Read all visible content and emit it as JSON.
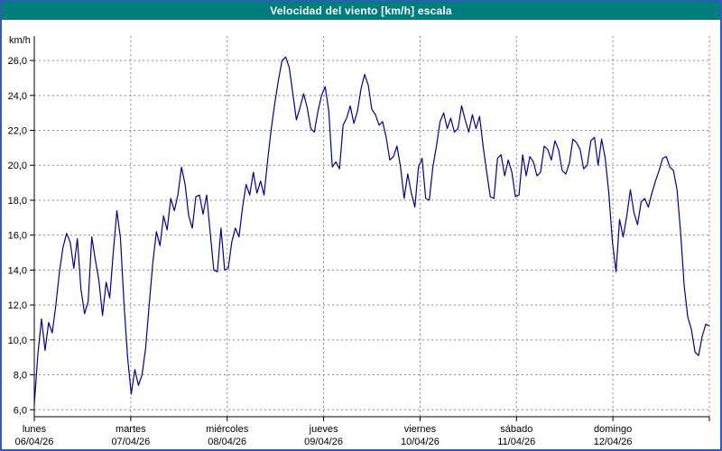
{
  "window": {
    "title": "Velocidad del viento [km/h] escala"
  },
  "colors": {
    "line": "#0000a0",
    "grid": "#8a8a8a",
    "axis": "#000000",
    "text": "#000000",
    "title_bg": "#007d7d",
    "title_fg": "#ffffff",
    "frame": "#2e5cb8",
    "plot_bg": "#ffffff"
  },
  "chart_data": {
    "type": "line",
    "title": "Velocidad del viento [km/h] escala",
    "xlabel": "",
    "ylabel": "km/h",
    "ylim": [
      5.6,
      27.4
    ],
    "yticks": [
      6,
      8,
      10,
      12,
      14,
      16,
      18,
      20,
      22,
      24,
      26
    ],
    "ytick_labels": [
      "6,0",
      "8,0",
      "10,0",
      "12,0",
      "14,0",
      "16,0",
      "18,0",
      "20,0",
      "22,0",
      "24,0",
      "26,0"
    ],
    "grid": true,
    "legend_position": "none",
    "series_name": "Velocidad del viento",
    "days": [
      {
        "name": "lunes",
        "date": "06/04/26",
        "values": [
          6.3,
          9.2,
          11.2,
          9.4,
          11.0,
          10.4,
          12.0,
          13.9,
          15.3,
          16.1,
          15.6,
          14.1,
          15.8,
          12.9,
          11.5,
          12.2,
          15.9,
          14.6,
          13.4,
          11.4,
          13.3,
          12.4,
          15.0,
          17.4,
          15.8,
          12.0,
          9.0
        ]
      },
      {
        "name": "martes",
        "date": "07/04/26",
        "values": [
          6.9,
          8.3,
          7.4,
          8.0,
          9.5,
          12.0,
          14.4,
          16.2,
          15.4,
          17.1,
          16.3,
          18.1,
          17.4,
          18.3,
          19.9,
          18.9,
          17.1,
          16.4,
          18.2,
          18.3,
          17.2,
          18.3,
          16.1,
          14.0,
          13.9,
          16.4,
          14.0
        ]
      },
      {
        "name": "miércoles",
        "date": "08/04/26",
        "values": [
          14.1,
          15.6,
          16.4,
          15.9,
          17.6,
          18.9,
          18.3,
          19.6,
          18.4,
          19.1,
          18.3,
          20.3,
          22.1,
          23.6,
          24.9,
          26.0,
          26.2,
          25.6,
          24.1,
          22.6,
          23.3,
          24.1,
          23.3,
          22.1,
          21.9,
          23.1,
          24.0
        ]
      },
      {
        "name": "jueves",
        "date": "09/04/26",
        "values": [
          24.5,
          23.1,
          19.9,
          20.2,
          19.8,
          22.3,
          22.7,
          23.4,
          22.4,
          23.1,
          24.4,
          25.2,
          24.6,
          23.2,
          22.9,
          22.3,
          22.5,
          21.6,
          20.3,
          20.5,
          21.1,
          19.9,
          18.1,
          19.5,
          18.4,
          17.6,
          19.9
        ]
      },
      {
        "name": "viernes",
        "date": "10/04/26",
        "values": [
          20.4,
          18.1,
          18.0,
          19.9,
          21.1,
          22.5,
          23.0,
          22.1,
          22.7,
          21.9,
          22.1,
          23.4,
          22.6,
          21.9,
          22.9,
          22.1,
          22.8,
          21.1,
          19.6,
          18.2,
          18.1,
          20.4,
          20.6,
          19.4,
          20.3,
          19.6,
          18.2
        ]
      },
      {
        "name": "sábado",
        "date": "11/04/26",
        "values": [
          18.3,
          20.6,
          19.4,
          20.5,
          20.2,
          19.4,
          19.6,
          21.1,
          20.9,
          20.3,
          21.4,
          20.9,
          19.7,
          19.5,
          20.1,
          21.5,
          21.3,
          20.9,
          19.8,
          20.0,
          21.4,
          21.6,
          20.0,
          21.5,
          20.4,
          18.4,
          15.6
        ]
      },
      {
        "name": "domingo",
        "date": "12/04/26",
        "values": [
          13.9,
          16.9,
          15.9,
          17.1,
          18.6,
          17.3,
          16.6,
          17.9,
          18.1,
          17.6,
          18.4,
          19.1,
          19.7,
          20.4,
          20.5,
          19.9,
          19.7,
          18.6,
          16.1,
          13.1,
          11.3,
          10.6,
          9.3,
          9.1,
          10.2,
          10.9,
          10.8
        ]
      }
    ]
  }
}
